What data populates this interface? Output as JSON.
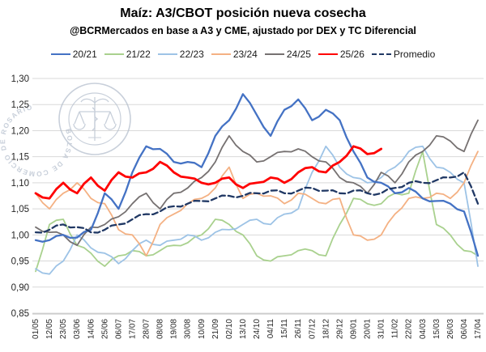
{
  "title": "Maíz: A3/CBOT posición nueva cosecha",
  "subtitle": "@BCRMercados en base a A3 y CME, ajustado por DEX y TC Diferencial",
  "watermark": "BOLSA DE COMERCIO DE ROSARIO",
  "colors": {
    "grid": "#d9d9d9",
    "axis": "#bfbfbf",
    "tick_text": "#262626",
    "watermark": "#b6c0ce"
  },
  "chart_data": {
    "type": "line",
    "title": "Maíz: A3/CBOT posición nueva cosecha",
    "subtitle": "@BCRMercados en base a A3 y CME, ajustado por DEX y TC Diferencial",
    "xlabel": "",
    "ylabel": "",
    "ylim": [
      0.85,
      1.3
    ],
    "grid": true,
    "legend_position": "top",
    "yticks": [
      {
        "value": 0.85,
        "label": "0,85"
      },
      {
        "value": 0.9,
        "label": "0,90"
      },
      {
        "value": 0.95,
        "label": "0,95"
      },
      {
        "value": 1.0,
        "label": "1,00"
      },
      {
        "value": 1.05,
        "label": "1,05"
      },
      {
        "value": 1.1,
        "label": "1,10"
      },
      {
        "value": 1.15,
        "label": "1,15"
      },
      {
        "value": 1.2,
        "label": "1,20"
      },
      {
        "value": 1.25,
        "label": "1,25"
      },
      {
        "value": 1.3,
        "label": "1,30"
      }
    ],
    "categories": [
      "01/05",
      "12/05",
      "23/05",
      "03/06",
      "14/06",
      "25/06",
      "06/07",
      "17/07",
      "28/07",
      "08/08",
      "19/08",
      "30/08",
      "10/09",
      "21/09",
      "02/10",
      "13/10",
      "24/10",
      "04/11",
      "15/11",
      "26/11",
      "07/12",
      "18/12",
      "29/12",
      "09/01",
      "20/01",
      "31/01",
      "11/02",
      "22/02",
      "04/03",
      "15/03",
      "26/03",
      "06/04",
      "17/04"
    ],
    "series": [
      {
        "name": "21/22",
        "color": "#a9d18e",
        "width": 1.8,
        "dash": "",
        "values": [
          0.93,
          1.02,
          1.03,
          0.98,
          0.965,
          0.94,
          0.96,
          0.97,
          0.96,
          0.97,
          0.98,
          0.985,
          1.0,
          1.03,
          1.02,
          1.0,
          0.96,
          0.95,
          0.96,
          0.97,
          0.97,
          0.96,
          1.02,
          1.07,
          1.06,
          1.06,
          1.08,
          1.08,
          1.16,
          1.02,
          1.0,
          0.97,
          0.96
        ]
      },
      {
        "name": "22/23",
        "color": "#9dc3e6",
        "width": 1.8,
        "dash": "",
        "values": [
          0.935,
          0.925,
          0.95,
          1.0,
          0.975,
          0.965,
          0.945,
          0.97,
          0.99,
          0.98,
          0.99,
          1.0,
          0.99,
          1.005,
          1.01,
          1.02,
          1.03,
          1.02,
          1.04,
          1.05,
          1.12,
          1.17,
          1.13,
          1.11,
          1.1,
          1.11,
          1.13,
          1.16,
          1.17,
          1.13,
          1.12,
          1.1,
          0.94
        ]
      },
      {
        "name": "23/24",
        "color": "#f4b183",
        "width": 1.8,
        "dash": "",
        "values": [
          1.08,
          1.05,
          1.08,
          1.1,
          1.07,
          1.06,
          1.01,
          1.0,
          0.96,
          1.02,
          1.04,
          1.06,
          1.07,
          1.09,
          1.13,
          1.07,
          1.08,
          1.075,
          1.06,
          1.08,
          1.07,
          1.06,
          1.07,
          1.0,
          0.99,
          1.0,
          1.04,
          1.07,
          1.07,
          1.08,
          1.07,
          1.1,
          1.16
        ]
      },
      {
        "name": "24/25",
        "color": "#767171",
        "width": 1.8,
        "dash": "",
        "values": [
          1.015,
          1.005,
          1.0,
          0.98,
          1.015,
          1.02,
          1.035,
          1.06,
          1.08,
          1.05,
          1.08,
          1.09,
          1.11,
          1.14,
          1.19,
          1.16,
          1.14,
          1.15,
          1.16,
          1.165,
          1.15,
          1.14,
          1.11,
          1.1,
          1.08,
          1.12,
          1.1,
          1.14,
          1.16,
          1.19,
          1.18,
          1.16,
          1.22
        ]
      },
      {
        "name": "20/21",
        "color": "#4472c4",
        "width": 2.3,
        "dash": "",
        "values": [
          0.99,
          0.99,
          1.0,
          0.995,
          1.01,
          1.08,
          1.05,
          1.12,
          1.17,
          1.165,
          1.14,
          1.14,
          1.13,
          1.19,
          1.22,
          1.27,
          1.23,
          1.19,
          1.24,
          1.26,
          1.22,
          1.24,
          1.22,
          1.16,
          1.11,
          1.1,
          1.08,
          1.09,
          1.07,
          1.065,
          1.06,
          1.045,
          0.96
        ]
      },
      {
        "name": "25/26",
        "color": "#ff0000",
        "width": 2.8,
        "dash": "",
        "values": [
          1.08,
          1.07,
          1.1,
          1.08,
          1.11,
          1.085,
          1.12,
          1.11,
          1.12,
          1.14,
          1.12,
          1.11,
          1.1,
          1.1,
          1.11,
          1.09,
          1.1,
          1.11,
          1.1,
          1.12,
          1.13,
          1.12,
          1.14,
          1.17,
          1.155,
          1.165,
          null,
          null,
          null,
          null,
          null,
          null,
          null
        ]
      },
      {
        "name": "Promedio",
        "color": "#203864",
        "width": 2.3,
        "dash": "7 4",
        "values": [
          1.005,
          1.01,
          1.02,
          1.015,
          1.005,
          1.01,
          1.02,
          1.03,
          1.04,
          1.045,
          1.055,
          1.06,
          1.065,
          1.07,
          1.075,
          1.075,
          1.08,
          1.085,
          1.08,
          1.085,
          1.09,
          1.085,
          1.08,
          1.085,
          1.08,
          1.08,
          1.09,
          1.1,
          1.1,
          1.105,
          1.11,
          1.12,
          1.06
        ]
      }
    ],
    "legend_order": [
      "20/21",
      "21/22",
      "22/23",
      "23/24",
      "24/25",
      "25/26",
      "Promedio"
    ]
  }
}
